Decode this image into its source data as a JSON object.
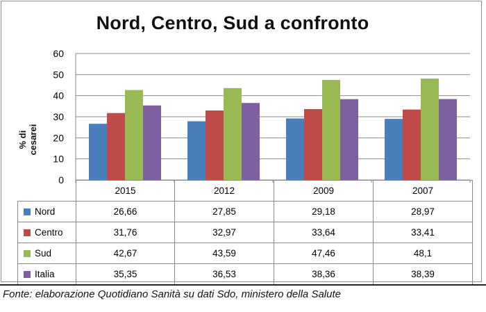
{
  "chart_data": {
    "type": "bar",
    "title": "Nord, Centro, Sud a confronto",
    "ylabel": "% di cesarei",
    "xlabel": "",
    "ylim": [
      0,
      60
    ],
    "yticks": [
      0,
      10,
      20,
      30,
      40,
      50,
      60
    ],
    "grid": true,
    "legend": "data-table",
    "categories": [
      "2015",
      "2012",
      "2009",
      "2007"
    ],
    "series": [
      {
        "name": "Nord",
        "color": "#4a7ebb",
        "values": [
          26.66,
          27.85,
          29.18,
          28.97
        ],
        "labels": [
          "26,66",
          "27,85",
          "29,18",
          "28,97"
        ]
      },
      {
        "name": "Centro",
        "color": "#be4b48",
        "values": [
          31.76,
          32.97,
          33.64,
          33.41
        ],
        "labels": [
          "31,76",
          "32,97",
          "33,64",
          "33,41"
        ]
      },
      {
        "name": "Sud",
        "color": "#98b954",
        "values": [
          42.67,
          43.59,
          47.46,
          48.1
        ],
        "labels": [
          "42,67",
          "43,59",
          "47,46",
          "48,1"
        ]
      },
      {
        "name": "Italia",
        "color": "#7d60a0",
        "values": [
          35.35,
          36.53,
          38.36,
          38.39
        ],
        "labels": [
          "35,35",
          "36,53",
          "38,36",
          "38,39"
        ]
      }
    ]
  },
  "source": "Fonte: elaborazione Quotidiano Sanità su dati Sdo, ministero della Salute"
}
